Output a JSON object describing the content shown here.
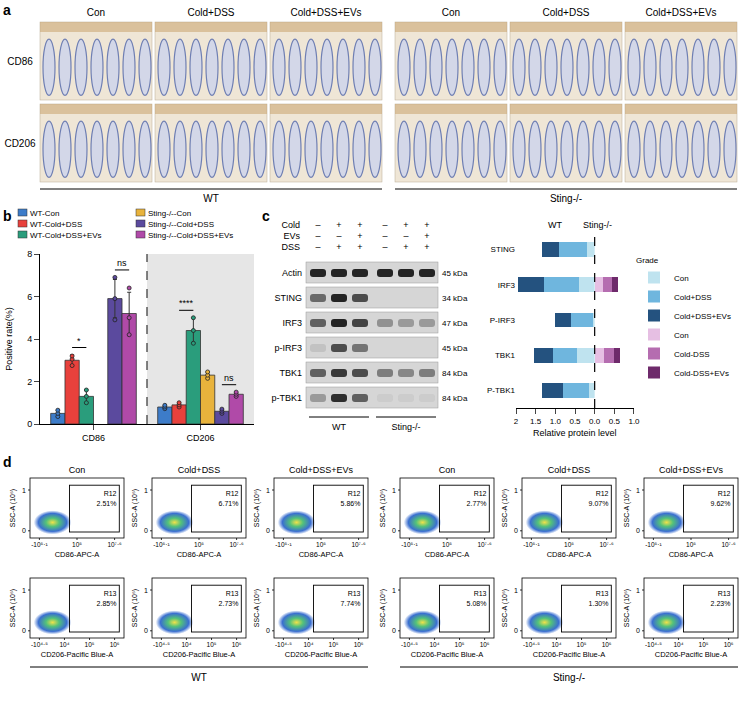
{
  "letters": [
    "a",
    "b",
    "c",
    "d"
  ],
  "histology": {
    "columns": [
      "Con",
      "Cold+DSS",
      "Cold+DSS+EVs",
      "Con",
      "Cold+DSS",
      "Cold+DSS+EVs"
    ],
    "rows": [
      "CD86",
      "CD206"
    ],
    "groups": [
      "WT",
      "Sting-/-"
    ]
  },
  "chart_data": [
    {
      "type": "bar",
      "ylabel": "Positive rate(%)",
      "categories": [
        "CD86",
        "CD206"
      ],
      "ylim": [
        0,
        8
      ],
      "yticks": [
        0,
        2,
        4,
        6,
        8
      ],
      "legend": "top",
      "series": [
        {
          "name": "WT-Con",
          "color": "#3d7cc9",
          "values": [
            0.5,
            0.8
          ],
          "errors": [
            0.15,
            0.08
          ],
          "points": [
            [
              0.35,
              0.5,
              0.65
            ],
            [
              0.72,
              0.8,
              0.88
            ]
          ]
        },
        {
          "name": "WT-Cold+DSS",
          "color": "#e8413c",
          "values": [
            3.0,
            0.9
          ],
          "errors": [
            0.25,
            0.1
          ],
          "points": [
            [
              2.75,
              3.05,
              3.2
            ],
            [
              0.8,
              0.9,
              1.0
            ]
          ]
        },
        {
          "name": "WT-Cold+DSS+EVs",
          "color": "#2a9d7c",
          "values": [
            1.3,
            4.4
          ],
          "errors": [
            0.3,
            0.6
          ],
          "points": [
            [
              1.0,
              1.3,
              1.6
            ],
            [
              3.8,
              4.4,
              5.0
            ]
          ]
        },
        {
          "name": "Sting-/--Con",
          "color": "#e8b33c",
          "values": [
            null,
            2.3
          ],
          "errors": [
            null,
            0.15
          ],
          "points": [
            null,
            [
              2.15,
              2.3,
              2.45
            ]
          ]
        },
        {
          "name": "Sting-/--Cold+DSS",
          "color": "#5b4a9e",
          "values": [
            5.9,
            0.6
          ],
          "errors": [
            0.9,
            0.1
          ],
          "points": [
            [
              4.9,
              5.9,
              6.9
            ],
            [
              0.5,
              0.6,
              0.7
            ]
          ]
        },
        {
          "name": "Sting-/--Cold+DSS+EVs",
          "color": "#b04aa8",
          "values": [
            5.2,
            1.4
          ],
          "errors": [
            1.0,
            0.1
          ],
          "points": [
            [
              4.2,
              5.0,
              6.4
            ],
            [
              1.3,
              1.4,
              1.5
            ]
          ]
        }
      ],
      "comparisons": [
        {
          "category": "CD86",
          "from": "WT-Cold+DSS",
          "to": "WT-Cold+DSS+EVs",
          "label": "*"
        },
        {
          "category": "CD86",
          "from": "Sting-/--Cold+DSS",
          "to": "Sting-/--Cold+DSS+EVs",
          "label": "ns"
        },
        {
          "category": "CD206",
          "from": "WT-Cold+DSS",
          "to": "WT-Cold+DSS+EVs",
          "label": "****"
        },
        {
          "category": "CD206",
          "from": "Sting-/--Cold+DSS",
          "to": "Sting-/--Cold+DSS+EVs",
          "label": "ns"
        }
      ]
    },
    {
      "type": "bar",
      "orientation": "horizontal",
      "stacked": true,
      "xlabel": "Relative protein level",
      "legend": "right",
      "legend_title": "Grade",
      "categories": [
        "STING",
        "IRF3",
        "P-IRF3",
        "TBK1",
        "P-TBK1"
      ],
      "groups": [
        {
          "name": "WT",
          "xlim": [
            2,
            0
          ],
          "xticks": [
            2,
            1.5,
            {
              "value": 1,
              "label": "1.0"
            },
            0.5,
            {
              "value": 0,
              "label": "0.0"
            }
          ],
          "series": [
            {
              "name": "Con",
              "color": "#bfe3ef",
              "values": [
                0.2,
                0.4,
                0.05,
                0.45,
                0.15
              ]
            },
            {
              "name": "Cold+DSS",
              "color": "#6fb6de",
              "values": [
                0.7,
                0.9,
                0.55,
                0.6,
                0.65
              ]
            },
            {
              "name": "Cold+DSS+EVs",
              "color": "#24527f",
              "values": [
                0.45,
                0.65,
                0.4,
                0.5,
                0.55
              ]
            }
          ]
        },
        {
          "name": "Sting-/-",
          "xlim": [
            0,
            1
          ],
          "xticks": [
            0.5,
            {
              "value": 1,
              "label": "1.0"
            }
          ],
          "series": [
            {
              "name": "Con",
              "color": "#e6bfe3",
              "values": [
                0,
                0.22,
                0,
                0.25,
                0
              ]
            },
            {
              "name": "Cold-DSS",
              "color": "#b56db0",
              "values": [
                0,
                0.23,
                0,
                0.25,
                0
              ]
            },
            {
              "name": "Cold-DSS+EVs",
              "color": "#6e2a6b",
              "values": [
                0,
                0.15,
                0,
                0.15,
                0
              ]
            }
          ]
        }
      ]
    }
  ],
  "blot": {
    "conditions": [
      {
        "label": "Cold",
        "signs": [
          "–",
          "+",
          "+",
          "–",
          "+",
          "+"
        ]
      },
      {
        "label": "EVs",
        "signs": [
          "–",
          "–",
          "+",
          "–",
          "–",
          "+"
        ]
      },
      {
        "label": "DSS",
        "signs": [
          "–",
          "+",
          "+",
          "–",
          "+",
          "+"
        ]
      }
    ],
    "rows": [
      {
        "protein": "Actin",
        "size": "45 kDa",
        "bands": [
          0.9,
          0.9,
          0.9,
          0.9,
          0.9,
          0.9
        ]
      },
      {
        "protein": "STING",
        "size": "34 kDa",
        "bands": [
          0.55,
          0.9,
          0.7,
          0,
          0,
          0
        ]
      },
      {
        "protein": "IRF3",
        "size": "47 kDa",
        "bands": [
          0.6,
          0.9,
          0.75,
          0.35,
          0.3,
          0.3
        ]
      },
      {
        "protein": "p-IRF3",
        "size": "45 kDa",
        "bands": [
          0.1,
          0.7,
          0.5,
          0,
          0,
          0
        ]
      },
      {
        "protein": "TBK1",
        "size": "84 kDa",
        "bands": [
          0.6,
          0.8,
          0.7,
          0.45,
          0.4,
          0.45
        ]
      },
      {
        "protein": "p-TBK1",
        "size": "84 kDa",
        "bands": [
          0.3,
          0.85,
          0.6,
          0.05,
          0.05,
          0.05
        ]
      }
    ],
    "groups": [
      "WT",
      "Sting-/-"
    ]
  },
  "flow": {
    "columns": [
      "Con",
      "Cold+DSS",
      "Cold+DSS+EVs",
      "Con",
      "Cold+DSS",
      "Cold+DSS+EVs"
    ],
    "groups": [
      "WT",
      "Sting-/-"
    ],
    "ylabel": "SSC-A (10⁶)",
    "yticks": [
      "0",
      "1"
    ],
    "rows": [
      {
        "gate": "R12",
        "xlabel": "CD86-APC-A",
        "xticks": [
          "-10⁵·¹",
          "10⁵",
          "10⁷·⁶"
        ],
        "percentages": [
          "2.51%",
          "6.71%",
          "5.86%",
          "2.77%",
          "9.07%",
          "9.62%"
        ]
      },
      {
        "gate": "R13",
        "xlabel": "CD206-Pacific Blue-A",
        "xticks": [
          "-10⁴·⁵",
          "10⁴",
          "10⁵",
          "10⁶"
        ],
        "percentages": [
          "2.85%",
          "2.73%",
          "7.74%",
          "5.08%",
          "1.30%",
          "2.23%"
        ]
      }
    ]
  }
}
